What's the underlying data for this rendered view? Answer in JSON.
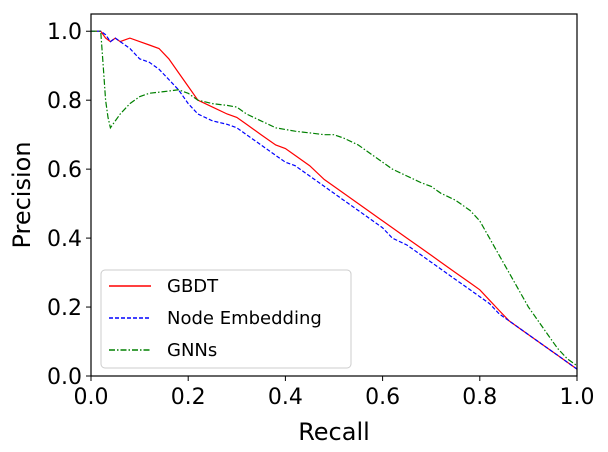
{
  "chart_data": {
    "type": "line",
    "title": "",
    "xlabel": "Recall",
    "ylabel": "Precision",
    "xlim": [
      0.0,
      1.0
    ],
    "ylim": [
      0.0,
      1.05
    ],
    "xticks": [
      "0.0",
      "0.2",
      "0.4",
      "0.6",
      "0.8",
      "1.0"
    ],
    "yticks": [
      "0.0",
      "0.2",
      "0.4",
      "0.6",
      "0.8",
      "1.0"
    ],
    "grid": false,
    "legend_position": "lower-left",
    "series": [
      {
        "name": "GBDT",
        "color": "#ff0000",
        "style": "solid",
        "x": [
          0.0,
          0.02,
          0.03,
          0.04,
          0.05,
          0.06,
          0.08,
          0.1,
          0.12,
          0.14,
          0.16,
          0.18,
          0.2,
          0.22,
          0.25,
          0.28,
          0.3,
          0.32,
          0.35,
          0.38,
          0.4,
          0.42,
          0.45,
          0.48,
          0.5,
          0.52,
          0.55,
          0.58,
          0.6,
          0.62,
          0.65,
          0.68,
          0.7,
          0.72,
          0.75,
          0.78,
          0.8,
          0.82,
          0.84,
          0.86,
          0.88,
          0.9,
          0.92,
          0.94,
          0.96,
          0.98,
          1.0
        ],
        "y": [
          1.0,
          1.0,
          0.98,
          0.97,
          0.98,
          0.97,
          0.98,
          0.97,
          0.96,
          0.95,
          0.92,
          0.88,
          0.84,
          0.8,
          0.78,
          0.76,
          0.75,
          0.73,
          0.7,
          0.67,
          0.66,
          0.64,
          0.61,
          0.57,
          0.55,
          0.53,
          0.5,
          0.47,
          0.45,
          0.43,
          0.4,
          0.37,
          0.35,
          0.33,
          0.3,
          0.27,
          0.25,
          0.22,
          0.19,
          0.16,
          0.14,
          0.12,
          0.1,
          0.08,
          0.06,
          0.04,
          0.02
        ]
      },
      {
        "name": "Node Embedding",
        "color": "#0000ff",
        "style": "dashed",
        "x": [
          0.0,
          0.02,
          0.03,
          0.04,
          0.05,
          0.06,
          0.08,
          0.1,
          0.12,
          0.14,
          0.16,
          0.18,
          0.2,
          0.22,
          0.25,
          0.28,
          0.3,
          0.32,
          0.35,
          0.38,
          0.4,
          0.42,
          0.45,
          0.48,
          0.5,
          0.52,
          0.55,
          0.58,
          0.6,
          0.62,
          0.65,
          0.68,
          0.7,
          0.72,
          0.75,
          0.78,
          0.8,
          0.82,
          0.84,
          0.86,
          0.88,
          0.9,
          0.92,
          0.94,
          0.96,
          0.98,
          1.0
        ],
        "y": [
          1.0,
          1.0,
          0.99,
          0.97,
          0.98,
          0.97,
          0.95,
          0.92,
          0.91,
          0.89,
          0.86,
          0.83,
          0.79,
          0.76,
          0.74,
          0.73,
          0.72,
          0.7,
          0.67,
          0.64,
          0.62,
          0.61,
          0.58,
          0.55,
          0.53,
          0.51,
          0.48,
          0.45,
          0.43,
          0.4,
          0.38,
          0.35,
          0.33,
          0.31,
          0.28,
          0.25,
          0.23,
          0.21,
          0.18,
          0.16,
          0.14,
          0.12,
          0.1,
          0.08,
          0.06,
          0.04,
          0.02
        ]
      },
      {
        "name": "GNNs",
        "color": "#008000",
        "style": "dashdot",
        "x": [
          0.0,
          0.02,
          0.025,
          0.03,
          0.035,
          0.04,
          0.05,
          0.06,
          0.08,
          0.1,
          0.12,
          0.15,
          0.18,
          0.2,
          0.22,
          0.25,
          0.28,
          0.3,
          0.32,
          0.35,
          0.38,
          0.4,
          0.42,
          0.45,
          0.48,
          0.5,
          0.52,
          0.55,
          0.58,
          0.6,
          0.62,
          0.65,
          0.68,
          0.7,
          0.72,
          0.75,
          0.78,
          0.8,
          0.82,
          0.84,
          0.86,
          0.88,
          0.9,
          0.92,
          0.94,
          0.96,
          0.98,
          1.0
        ],
        "y": [
          1.0,
          1.0,
          0.9,
          0.8,
          0.75,
          0.72,
          0.74,
          0.76,
          0.79,
          0.81,
          0.82,
          0.825,
          0.83,
          0.82,
          0.8,
          0.79,
          0.785,
          0.78,
          0.76,
          0.74,
          0.72,
          0.715,
          0.71,
          0.705,
          0.7,
          0.7,
          0.69,
          0.67,
          0.64,
          0.62,
          0.6,
          0.58,
          0.56,
          0.55,
          0.53,
          0.51,
          0.48,
          0.45,
          0.4,
          0.35,
          0.3,
          0.25,
          0.2,
          0.16,
          0.12,
          0.08,
          0.05,
          0.03
        ]
      }
    ]
  }
}
